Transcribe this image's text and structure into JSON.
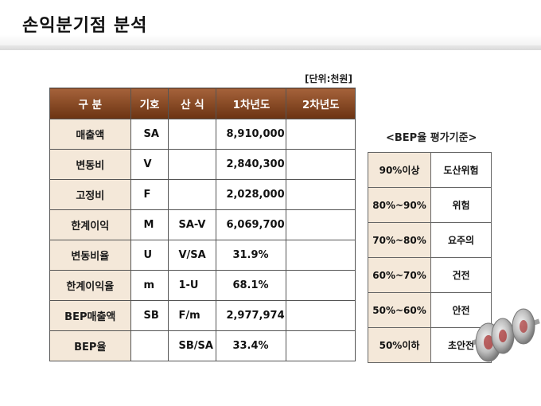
{
  "page": {
    "title": "손익분기점 분석",
    "unit_note": "[단위:천원]"
  },
  "main_table": {
    "headers": [
      "구   분",
      "기호",
      "산 식",
      "1차년도",
      "2차년도"
    ],
    "rows": [
      {
        "name": "매출액",
        "symbol": "SA",
        "formula": "",
        "year1": "8,910,000",
        "year2": ""
      },
      {
        "name": "변동비",
        "symbol": "V",
        "formula": "",
        "year1": "2,840,300",
        "year2": ""
      },
      {
        "name": "고정비",
        "symbol": "F",
        "formula": "",
        "year1": "2,028,000",
        "year2": ""
      },
      {
        "name": "한계이익",
        "symbol": "M",
        "formula": "SA-V",
        "year1": "6,069,700",
        "year2": ""
      },
      {
        "name": "변동비율",
        "symbol": "U",
        "formula": "V/SA",
        "year1": "31.9%",
        "year2": ""
      },
      {
        "name": "한계이익율",
        "symbol": "m",
        "formula": "1-U",
        "year1": "68.1%",
        "year2": ""
      },
      {
        "name": "BEP매출액",
        "symbol": "SB",
        "formula": "F/m",
        "year1": "2,977,974",
        "year2": ""
      },
      {
        "name": "BEP율",
        "symbol": "",
        "formula": "SB/SA",
        "year1": "33.4%",
        "year2": ""
      }
    ]
  },
  "criteria": {
    "title": "<BEP율 평가기준>",
    "rows": [
      {
        "range": "90%이상",
        "status": "도산위험"
      },
      {
        "range": "80%~90%",
        "status": "위험"
      },
      {
        "range": "70%~80%",
        "status": "요주의"
      },
      {
        "range": "60%~70%",
        "status": "건전"
      },
      {
        "range": "50%~60%",
        "status": "안전"
      },
      {
        "range": "50%이하",
        "status": "초안전"
      }
    ]
  },
  "decoration": {
    "image": "dumbbell-icon"
  }
}
